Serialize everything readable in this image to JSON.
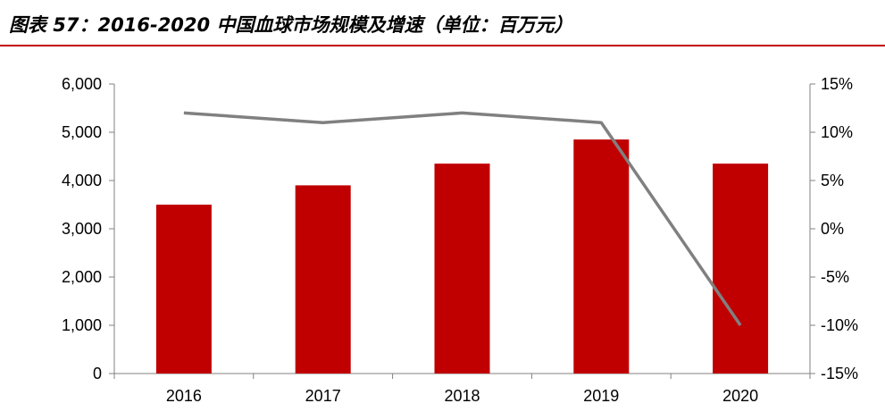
{
  "title": "图表 57：2016-2020 中国血球市场规模及增速（单位：百万元）",
  "colors": {
    "bar": "#C00000",
    "line": "#808080",
    "rule": "#C00000"
  },
  "chart_data": {
    "type": "bar",
    "categories": [
      "2016",
      "2017",
      "2018",
      "2019",
      "2020"
    ],
    "series": [
      {
        "type": "bar",
        "axis": "left",
        "values": [
          3500,
          3900,
          4350,
          4850,
          4350
        ]
      },
      {
        "type": "line",
        "axis": "right",
        "values": [
          12,
          11,
          12,
          11,
          -10
        ]
      }
    ],
    "y_left": {
      "ylim": [
        0,
        6000
      ],
      "ticks": [
        0,
        1000,
        2000,
        3000,
        4000,
        5000,
        6000
      ],
      "tick_labels": [
        "0",
        "1,000",
        "2,000",
        "3,000",
        "4,000",
        "5,000",
        "6,000"
      ]
    },
    "y_right": {
      "ylim": [
        -15,
        15
      ],
      "ticks": [
        -15,
        -10,
        -5,
        0,
        5,
        10,
        15
      ],
      "tick_labels": [
        "-15%",
        "-10%",
        "-5%",
        "0%",
        "5%",
        "10%",
        "15%"
      ]
    },
    "grid": false,
    "legend": "none"
  }
}
